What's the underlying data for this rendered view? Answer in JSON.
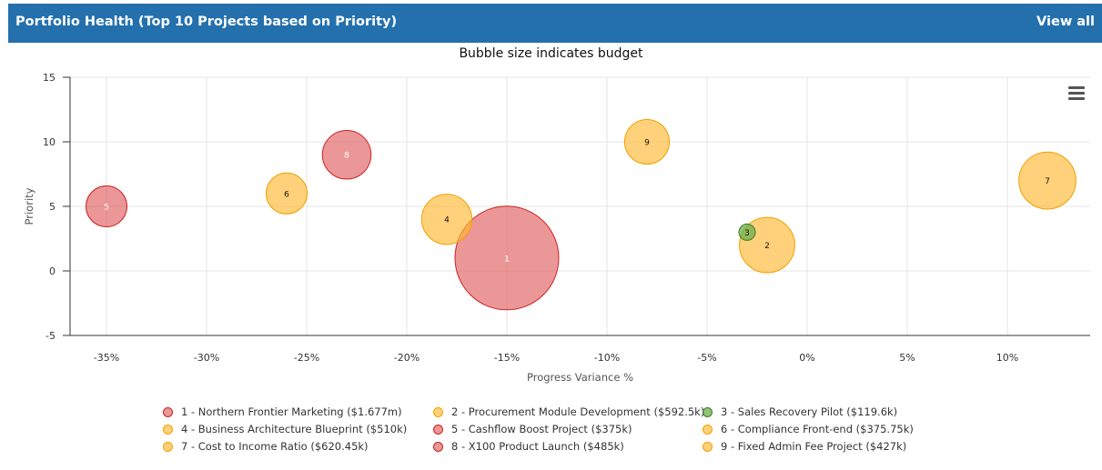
{
  "header": {
    "title": "Portfolio Health (Top 10 Projects based on Priority)",
    "view_all": "View all"
  },
  "colors": {
    "header_bg": "#2470ad",
    "red": "#e06060",
    "orange": "#ffb833",
    "green": "#6ab04c"
  },
  "chart_data": {
    "type": "scatter",
    "subtitle": "Bubble size indicates budget",
    "xlabel": "Progress Variance %",
    "ylabel": "Priority",
    "xlim": [
      -37,
      14
    ],
    "ylim": [
      -5,
      15
    ],
    "x_ticks": [
      "-35%",
      "-30%",
      "-25%",
      "-20%",
      "-15%",
      "-10%",
      "-5%",
      "0%",
      "5%",
      "10%"
    ],
    "x_tick_values": [
      -35,
      -30,
      -25,
      -20,
      -15,
      -10,
      -5,
      0,
      5,
      10
    ],
    "y_ticks": [
      "15",
      "10",
      "5",
      "0",
      "-5"
    ],
    "y_tick_values": [
      15,
      10,
      5,
      0,
      -5
    ],
    "grid": true,
    "points": [
      {
        "label": "1",
        "name": "Northern Frontier Marketing",
        "x": -15,
        "y": 1,
        "budget": 1677,
        "status": "red"
      },
      {
        "label": "2",
        "name": "Procurement Module Development",
        "x": -2,
        "y": 2,
        "budget": 592.5,
        "status": "orange"
      },
      {
        "label": "3",
        "name": "Sales Recovery Pilot",
        "x": -3,
        "y": 3,
        "budget": 119.6,
        "status": "green"
      },
      {
        "label": "4",
        "name": "Business Architecture Blueprint",
        "x": -18,
        "y": 4,
        "budget": 510,
        "status": "orange"
      },
      {
        "label": "5",
        "name": "Cashflow Boost Project",
        "x": -35,
        "y": 5,
        "budget": 375,
        "status": "red"
      },
      {
        "label": "6",
        "name": "Compliance Front-end",
        "x": -26,
        "y": 6,
        "budget": 375.75,
        "status": "orange"
      },
      {
        "label": "7",
        "name": "Cost to Income Ratio",
        "x": 12,
        "y": 7,
        "budget": 620.45,
        "status": "orange"
      },
      {
        "label": "8",
        "name": "X100 Product Launch",
        "x": -23,
        "y": 9,
        "budget": 485,
        "status": "red"
      },
      {
        "label": "9",
        "name": "Fixed Admin Fee Project",
        "x": -8,
        "y": 10,
        "budget": 427,
        "status": "orange"
      }
    ],
    "legend": [
      {
        "text": "1 - Northern Frontier Marketing ($1.677m)",
        "status": "red"
      },
      {
        "text": "2 - Procurement Module Development ($592.5k)",
        "status": "orange"
      },
      {
        "text": "3 - Sales Recovery Pilot ($119.6k)",
        "status": "green"
      },
      {
        "text": "4 - Business Architecture Blueprint ($510k)",
        "status": "orange"
      },
      {
        "text": "5 - Cashflow Boost Project ($375k)",
        "status": "red"
      },
      {
        "text": "6 - Compliance Front-end ($375.75k)",
        "status": "orange"
      },
      {
        "text": "7 - Cost to Income Ratio ($620.45k)",
        "status": "orange"
      },
      {
        "text": "8 - X100 Product Launch ($485k)",
        "status": "red"
      },
      {
        "text": "9 - Fixed Admin Fee Project ($427k)",
        "status": "orange"
      }
    ]
  },
  "menu": {
    "icon": "hamburger-icon"
  }
}
